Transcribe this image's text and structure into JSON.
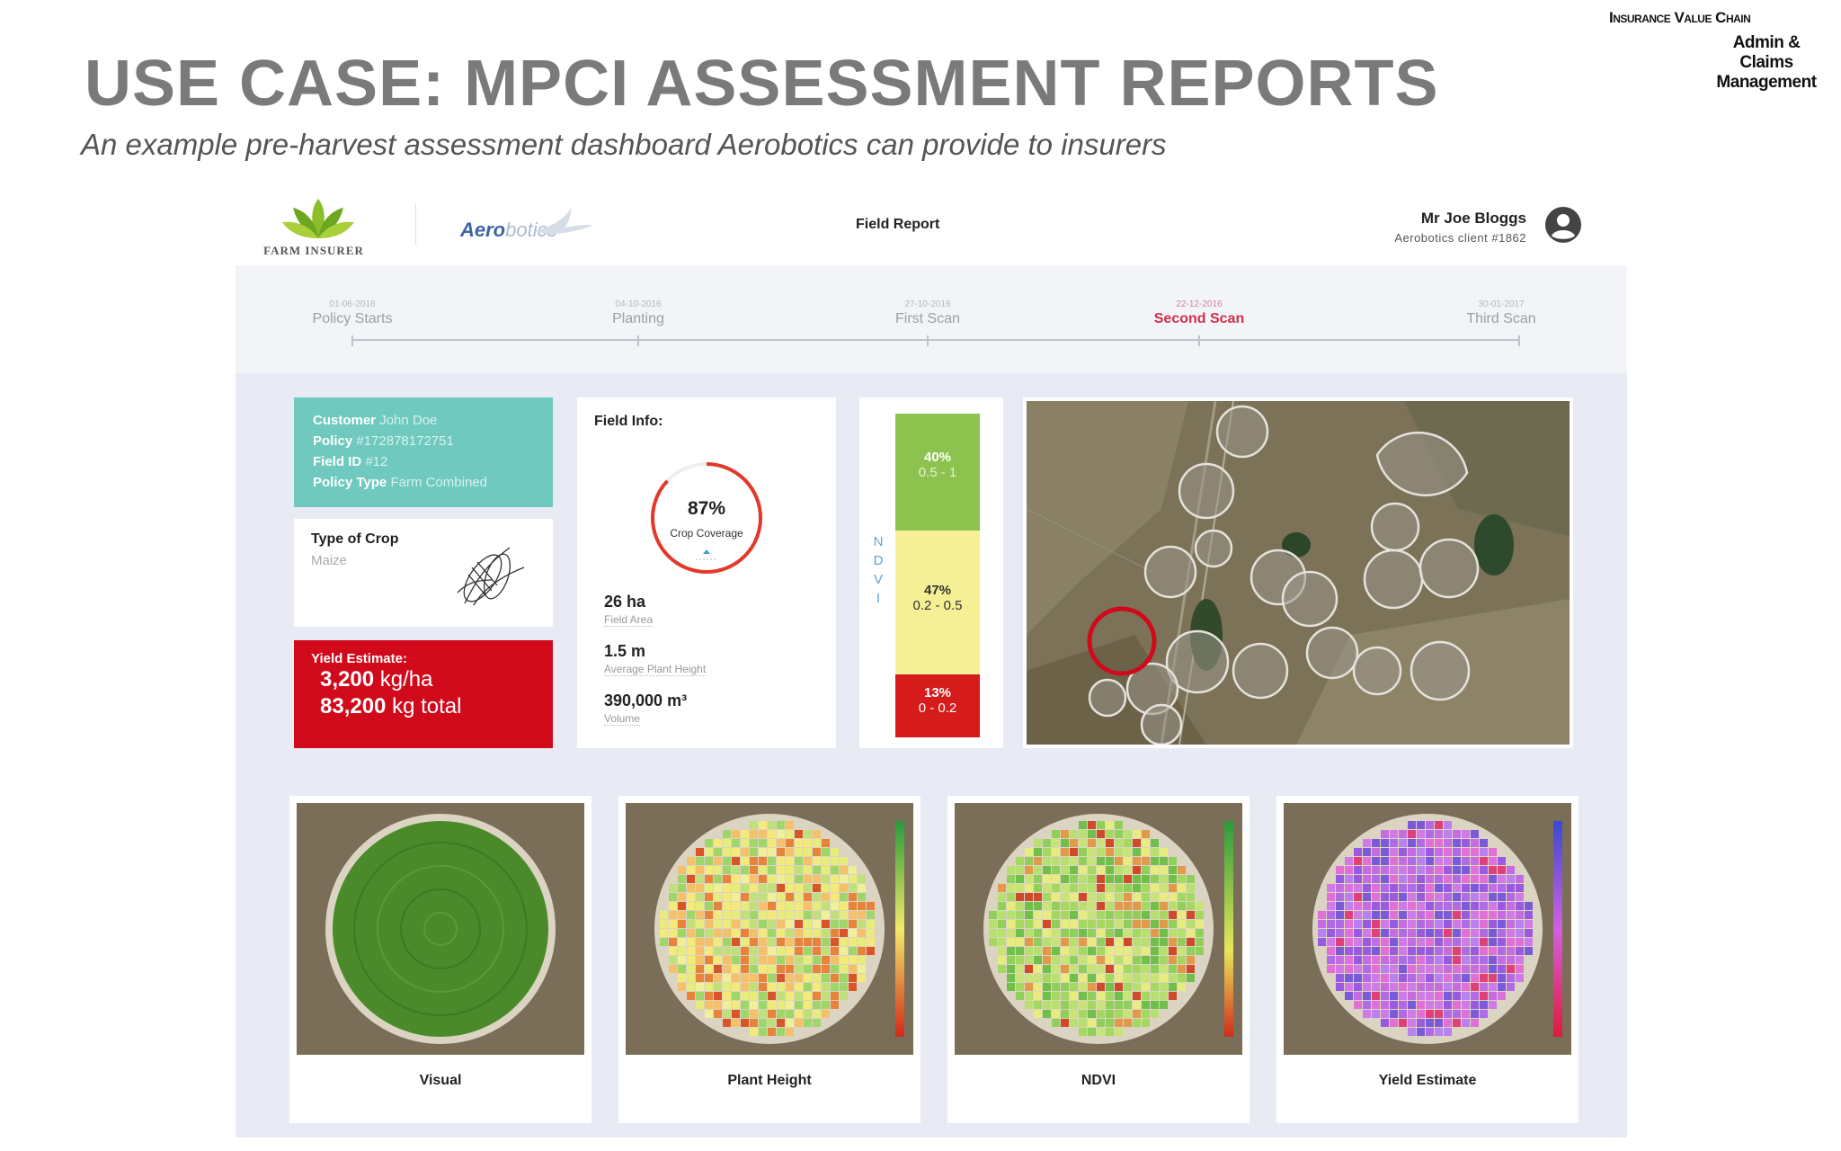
{
  "slide": {
    "chain_title": "Insurance Value Chain",
    "chain_sub_1": "Admin &",
    "chain_sub_2": "Claims",
    "chain_sub_3": "Management",
    "title": "USE CASE: MPCI ASSESSMENT REPORTS",
    "subtitle": "An example pre-harvest assessment dashboard Aerobotics can provide to insurers"
  },
  "header": {
    "insurer_name": "FARM INSURER",
    "aero_bold": "Aero",
    "aero_light": "botics",
    "report_title": "Field Report",
    "user_name": "Mr Joe Bloggs",
    "user_client": "Aerobotics client #1862"
  },
  "timeline": [
    {
      "date": "01-06-2016",
      "label": "Policy Starts"
    },
    {
      "date": "04-10-2016",
      "label": "Planting"
    },
    {
      "date": "27-10-2016",
      "label": "First Scan"
    },
    {
      "date": "22-12-2016",
      "label": "Second Scan"
    },
    {
      "date": "30-01-2017",
      "label": "Third Scan"
    }
  ],
  "customer": {
    "customer_label": "Customer",
    "customer_value": "John Doe",
    "policy_label": "Policy",
    "policy_value": "#172878172751",
    "field_label": "Field ID",
    "field_value": "#12",
    "type_label": "Policy Type",
    "type_value": "Farm Combined"
  },
  "crop": {
    "heading": "Type of Crop",
    "value": "Maize"
  },
  "yield": {
    "heading": "Yield Estimate:",
    "rate_value": "3,200",
    "rate_unit": "kg/ha",
    "total_value": "83,200",
    "total_unit": "kg total"
  },
  "field_info": {
    "heading": "Field Info:",
    "coverage_pct": "87%",
    "coverage_label": "Crop Coverage",
    "coverage_fraction": 0.87,
    "area_value": "26 ha",
    "area_label": "Field Area",
    "height_value": "1.5 m",
    "height_label": "Average Plant Height",
    "volume_value": "390,000 m³",
    "volume_label": "Volume"
  },
  "ndvi": {
    "axis": [
      "N",
      "D",
      "V",
      "I"
    ],
    "segments": [
      {
        "pct": "40%",
        "range": "0.5 - 1",
        "color": "#8cc34f"
      },
      {
        "pct": "47%",
        "range": "0.2 - 0.5",
        "color": "#f5ef96"
      },
      {
        "pct": "13%",
        "range": "0 - 0.2",
        "color": "#d61b1b"
      }
    ]
  },
  "thumbs": [
    {
      "caption": "Visual"
    },
    {
      "caption": "Plant Height"
    },
    {
      "caption": "NDVI"
    },
    {
      "caption": "Yield Estimate"
    }
  ],
  "colors": {
    "accent_red": "#d10a1b",
    "teal": "#6fc9bf",
    "active_step": "#cf2f4a"
  }
}
